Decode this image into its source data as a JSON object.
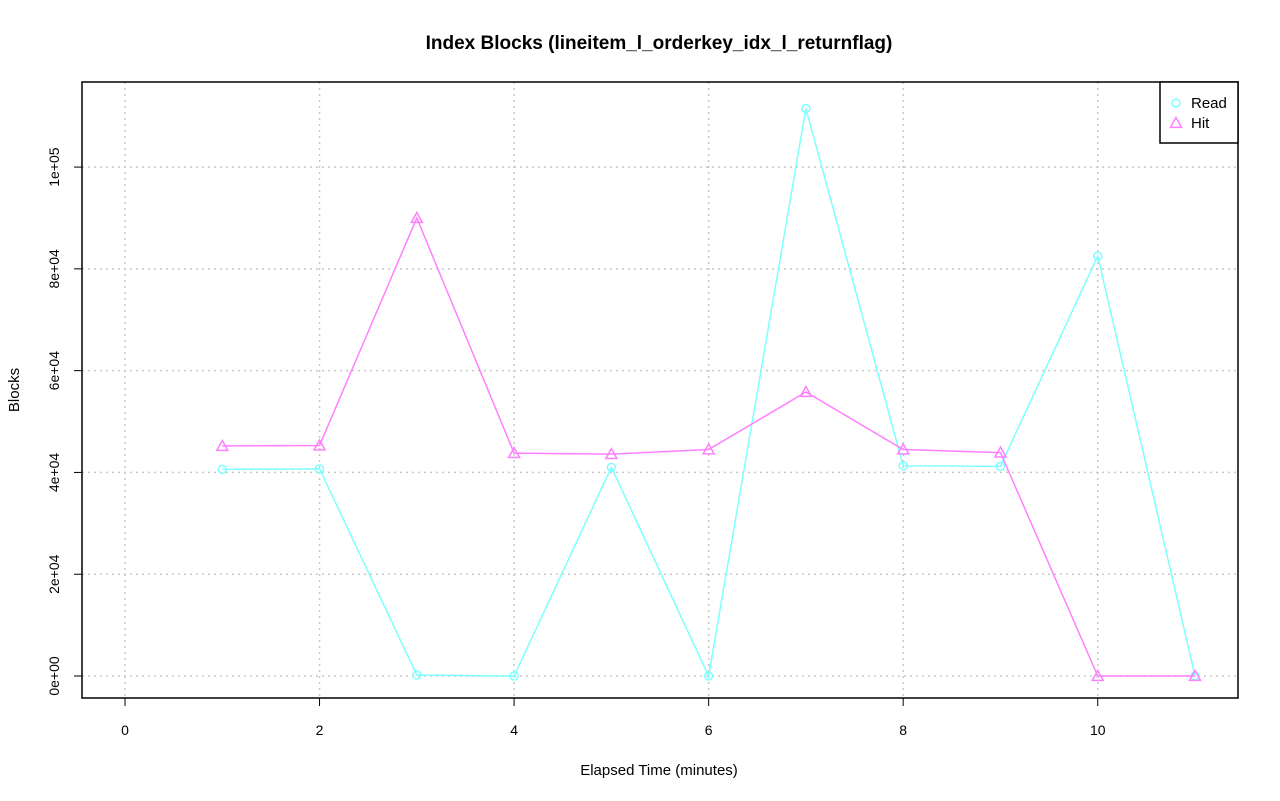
{
  "chart_data": {
    "type": "line",
    "title": "Index Blocks (lineitem_l_orderkey_idx_l_returnflag)",
    "xlabel": "Elapsed Time (minutes)",
    "ylabel": "Blocks",
    "xlim": [
      0,
      11
    ],
    "ylim": [
      0,
      112000
    ],
    "x_ticks": [
      0,
      2,
      4,
      6,
      8,
      10
    ],
    "x_tick_labels": [
      "0",
      "2",
      "4",
      "6",
      "8",
      "10"
    ],
    "y_ticks": [
      0,
      20000,
      40000,
      60000,
      80000,
      100000
    ],
    "y_tick_labels": [
      "0e+00",
      "2e+04",
      "4e+04",
      "6e+04",
      "8e+04",
      "1e+05"
    ],
    "grid": true,
    "legend_position": "top-right",
    "x": [
      1,
      2,
      3,
      4,
      5,
      6,
      7,
      8,
      9,
      10,
      11
    ],
    "series": [
      {
        "name": "Read",
        "color": "#7fffff",
        "marker": "circle",
        "values": [
          40600,
          40700,
          200,
          0,
          41000,
          0,
          111500,
          41300,
          41200,
          82500,
          0
        ]
      },
      {
        "name": "Hit",
        "color": "#ff80ff",
        "marker": "triangle",
        "values": [
          45200,
          45300,
          90000,
          43800,
          43600,
          44500,
          55800,
          44500,
          43900,
          0,
          0
        ]
      }
    ]
  }
}
